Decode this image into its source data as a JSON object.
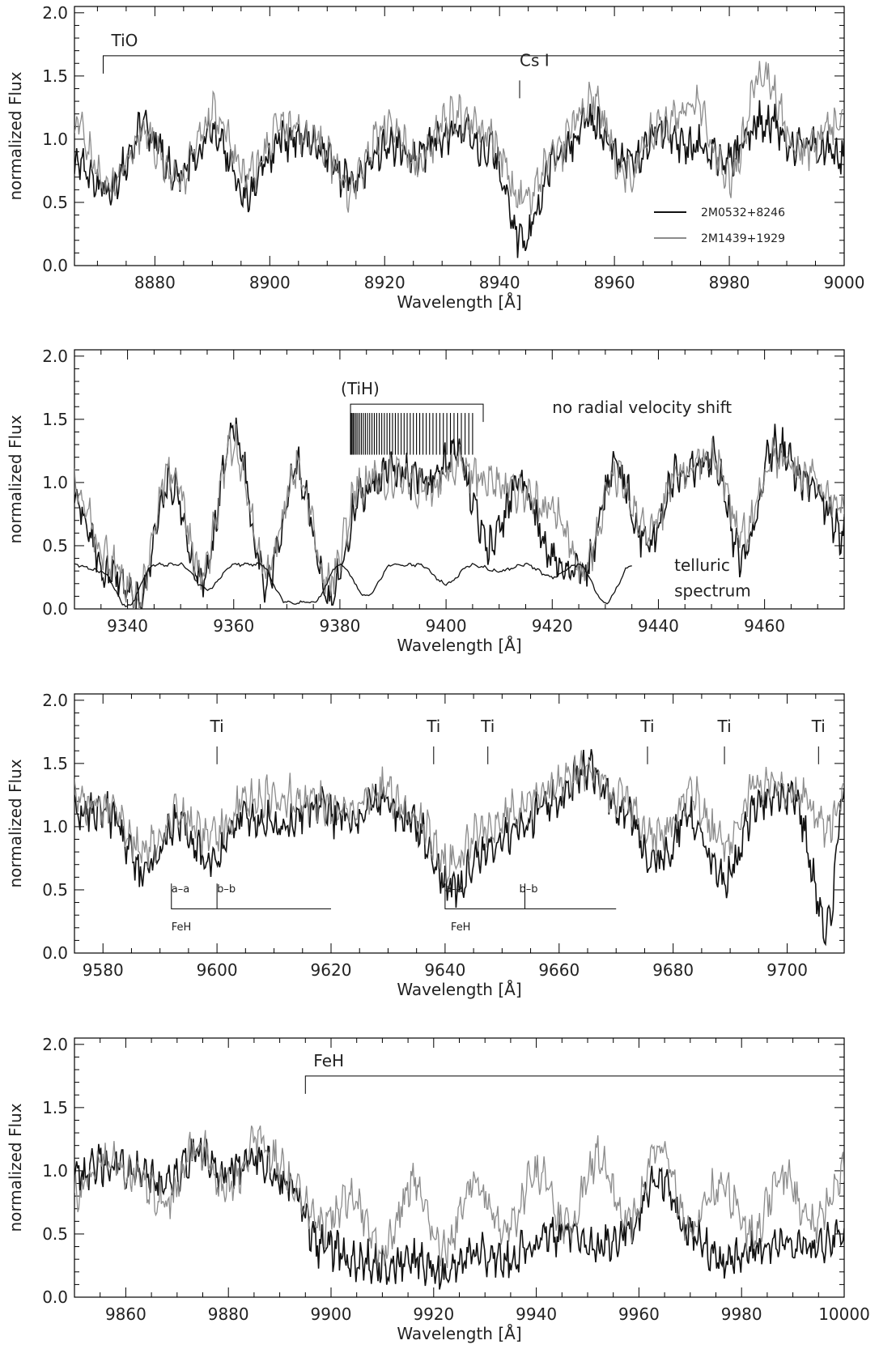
{
  "figure": {
    "colors": {
      "spectrum_a": "#111111",
      "spectrum_b": "#8c8c8c",
      "axes": "#000000",
      "telluric": "#111111"
    }
  },
  "legend": {
    "placement": "lower-right of panel 1",
    "entries": [
      {
        "label": "2M0532+8246",
        "color": "#111111"
      },
      {
        "label": "2M1439+1929",
        "color": "#8c8c8c"
      }
    ]
  },
  "chart_data": [
    {
      "type": "line",
      "panel": 1,
      "xlabel": "Wavelength [Å]",
      "ylabel": "normalized Flux",
      "xlim": [
        8866,
        9000
      ],
      "ylim": [
        0,
        2.05
      ],
      "x_ticks": [
        8880,
        8900,
        8920,
        8940,
        8960,
        8980,
        9000
      ],
      "y_ticks": [
        "0.0",
        "0.5",
        "1.0",
        "1.5",
        "2.0"
      ],
      "series": [
        {
          "name": "2M0532+8246",
          "x": [
            8866,
            8872,
            8878,
            8884,
            8890,
            8896,
            8902,
            8908,
            8914,
            8920,
            8926,
            8932,
            8938,
            8944,
            8950,
            8956,
            8962,
            8968,
            8974,
            8980,
            8986,
            8992,
            9000
          ],
          "values": [
            0.8,
            0.6,
            1.1,
            0.7,
            1.05,
            0.55,
            1.0,
            0.95,
            0.65,
            0.95,
            0.9,
            1.05,
            0.95,
            0.2,
            0.85,
            1.15,
            0.8,
            1.05,
            0.95,
            0.85,
            1.15,
            0.95,
            0.9
          ]
        },
        {
          "name": "2M1439+1929",
          "x": [
            8866,
            8872,
            8878,
            8884,
            8890,
            8896,
            8902,
            8908,
            8914,
            8920,
            8926,
            8932,
            8938,
            8944,
            8950,
            8956,
            8962,
            8968,
            8974,
            8980,
            8986,
            8992,
            9000
          ],
          "values": [
            1.1,
            0.6,
            1.05,
            0.65,
            1.2,
            0.7,
            1.1,
            1.0,
            0.6,
            1.1,
            0.85,
            1.2,
            1.05,
            0.5,
            0.9,
            1.3,
            0.7,
            1.1,
            1.25,
            0.7,
            1.55,
            0.9,
            1.1
          ]
        }
      ],
      "annotations": [
        {
          "text": "TiO",
          "x": 8871,
          "y": 1.66,
          "bracket_to": 9000
        },
        {
          "text": "Cs I",
          "x": 8943.5,
          "y": 1.58
        }
      ]
    },
    {
      "type": "line",
      "panel": 2,
      "xlabel": "Wavelength [Å]",
      "ylabel": "normalized Flux",
      "xlim": [
        9330,
        9475
      ],
      "ylim": [
        0,
        2.05
      ],
      "x_ticks": [
        9340,
        9360,
        9380,
        9400,
        9420,
        9440,
        9460
      ],
      "y_ticks": [
        "0.0",
        "0.5",
        "1.0",
        "1.5",
        "2.0"
      ],
      "series": [
        {
          "name": "2M0532+8246",
          "x": [
            9330,
            9336,
            9342,
            9348,
            9354,
            9360,
            9366,
            9372,
            9378,
            9384,
            9390,
            9396,
            9402,
            9408,
            9414,
            9420,
            9426,
            9432,
            9438,
            9444,
            9450,
            9456,
            9462,
            9468,
            9475
          ],
          "values": [
            0.9,
            0.3,
            0.05,
            1.0,
            0.2,
            1.4,
            0.2,
            1.1,
            0.1,
            0.9,
            1.1,
            1.0,
            1.2,
            0.5,
            1.0,
            0.4,
            0.3,
            1.1,
            0.5,
            1.1,
            1.2,
            0.4,
            1.3,
            1.0,
            0.6
          ]
        },
        {
          "name": "2M1439+1929",
          "x": [
            9330,
            9336,
            9342,
            9348,
            9354,
            9360,
            9366,
            9372,
            9378,
            9384,
            9390,
            9396,
            9402,
            9408,
            9414,
            9420,
            9426,
            9432,
            9438,
            9444,
            9450,
            9456,
            9462,
            9468,
            9475
          ],
          "values": [
            1.0,
            0.4,
            0.1,
            1.1,
            0.3,
            1.3,
            0.3,
            1.1,
            0.2,
            1.0,
            1.05,
            0.95,
            1.15,
            1.0,
            0.9,
            0.8,
            0.3,
            1.05,
            0.6,
            1.05,
            1.2,
            0.6,
            1.2,
            1.05,
            0.8
          ]
        },
        {
          "name": "telluric",
          "x": [
            9330,
            9335,
            9340,
            9345,
            9350,
            9355,
            9360,
            9365,
            9370,
            9375,
            9380,
            9385,
            9390,
            9395,
            9400,
            9405,
            9410,
            9415,
            9420,
            9425,
            9430,
            9435
          ],
          "values": [
            0.35,
            0.3,
            0.02,
            0.35,
            0.35,
            0.15,
            0.35,
            0.35,
            0.05,
            0.05,
            0.35,
            0.1,
            0.35,
            0.35,
            0.2,
            0.35,
            0.3,
            0.35,
            0.25,
            0.35,
            0.05,
            0.35
          ]
        }
      ],
      "annotations": [
        {
          "text": "(TiH)",
          "x": 9382,
          "y": 1.62,
          "bracket_to": 9407
        },
        {
          "text": "no radial velocity shift",
          "x": 9420,
          "y": 1.55
        },
        {
          "text": "telluric",
          "x": 9443,
          "y": 0.3
        },
        {
          "text": "spectrum",
          "x": 9443,
          "y": 0.1
        }
      ]
    },
    {
      "type": "line",
      "panel": 3,
      "xlabel": "Wavelength [Å]",
      "ylabel": "normalized Flux",
      "xlim": [
        9575,
        9710
      ],
      "ylim": [
        0,
        2.05
      ],
      "x_ticks": [
        9580,
        9600,
        9620,
        9640,
        9660,
        9680,
        9700
      ],
      "y_ticks": [
        "0.0",
        "0.5",
        "1.0",
        "1.5",
        "2.0"
      ],
      "series": [
        {
          "name": "2M0532+8246",
          "x": [
            9575,
            9581,
            9587,
            9593,
            9599,
            9605,
            9611,
            9617,
            9623,
            9629,
            9635,
            9641,
            9647,
            9653,
            9659,
            9665,
            9671,
            9677,
            9683,
            9689,
            9695,
            9701,
            9707,
            9710
          ],
          "values": [
            1.15,
            1.1,
            0.6,
            1.05,
            0.7,
            1.1,
            1.0,
            1.15,
            1.05,
            1.2,
            1.0,
            0.5,
            0.8,
            1.0,
            1.2,
            1.45,
            1.15,
            0.7,
            1.1,
            0.55,
            1.2,
            1.25,
            0.2,
            1.3
          ]
        },
        {
          "name": "2M1439+1929",
          "x": [
            9575,
            9581,
            9587,
            9593,
            9599,
            9605,
            9611,
            9617,
            9623,
            9629,
            9635,
            9641,
            9647,
            9653,
            9659,
            9665,
            9671,
            9677,
            9683,
            9689,
            9695,
            9701,
            9707,
            9710
          ],
          "values": [
            1.2,
            1.15,
            0.8,
            1.1,
            0.9,
            1.2,
            1.25,
            1.2,
            1.1,
            1.3,
            1.05,
            0.7,
            1.0,
            1.15,
            1.3,
            1.45,
            1.2,
            0.9,
            1.25,
            0.85,
            1.35,
            1.3,
            1.0,
            1.25
          ]
        }
      ],
      "annotations": [
        {
          "text": "Ti",
          "x": 9600,
          "y": 1.75
        },
        {
          "text": "Ti",
          "x": 9638,
          "y": 1.75
        },
        {
          "text": "Ti",
          "x": 9647.5,
          "y": 1.75
        },
        {
          "text": "Ti",
          "x": 9675.5,
          "y": 1.75
        },
        {
          "text": "Ti",
          "x": 9689,
          "y": 1.75
        },
        {
          "text": "Ti",
          "x": 9705.5,
          "y": 1.75
        },
        {
          "text": "a–a",
          "x": 9592,
          "y": 0.48
        },
        {
          "text": "b–b",
          "x": 9600,
          "y": 0.48
        },
        {
          "text": "FeH",
          "x": 9592,
          "y": 0.18
        },
        {
          "text": "a–a",
          "x": 9640,
          "y": 0.48
        },
        {
          "text": "b–b",
          "x": 9653,
          "y": 0.48
        },
        {
          "text": "FeH",
          "x": 9641,
          "y": 0.18
        }
      ]
    },
    {
      "type": "line",
      "panel": 4,
      "xlabel": "Wavelength [Å]",
      "ylabel": "normalized Flux",
      "xlim": [
        9850,
        10000
      ],
      "ylim": [
        0,
        2.05
      ],
      "x_ticks": [
        9860,
        9880,
        9900,
        9920,
        9940,
        9960,
        9980,
        10000
      ],
      "y_ticks": [
        "0.0",
        "0.5",
        "1.0",
        "1.5",
        "2.0"
      ],
      "series": [
        {
          "name": "2M0532+8246",
          "x": [
            9850,
            9856,
            9862,
            9868,
            9874,
            9880,
            9886,
            9892,
            9898,
            9904,
            9910,
            9916,
            9922,
            9928,
            9934,
            9940,
            9946,
            9952,
            9958,
            9964,
            9970,
            9976,
            9982,
            9988,
            9994,
            10000
          ],
          "values": [
            0.95,
            1.05,
            1.0,
            0.9,
            1.15,
            1.0,
            1.1,
            0.85,
            0.4,
            0.3,
            0.25,
            0.3,
            0.2,
            0.35,
            0.3,
            0.45,
            0.5,
            0.4,
            0.55,
            0.95,
            0.5,
            0.3,
            0.35,
            0.45,
            0.4,
            0.5
          ]
        },
        {
          "name": "2M1439+1929",
          "x": [
            9850,
            9856,
            9862,
            9868,
            9874,
            9880,
            9886,
            9892,
            9898,
            9904,
            9910,
            9916,
            9922,
            9928,
            9934,
            9940,
            9946,
            9952,
            9958,
            9964,
            9970,
            9976,
            9982,
            9988,
            9994,
            10000
          ],
          "values": [
            0.8,
            1.1,
            0.95,
            0.75,
            1.2,
            0.85,
            1.25,
            0.95,
            0.55,
            0.8,
            0.35,
            0.9,
            0.4,
            0.95,
            0.5,
            1.0,
            0.55,
            1.1,
            0.6,
            1.2,
            0.55,
            0.9,
            0.5,
            0.95,
            0.55,
            1.0
          ]
        }
      ],
      "annotations": [
        {
          "text": "FeH",
          "x": 9895,
          "y": 1.75,
          "bracket_to": 10000
        }
      ]
    }
  ]
}
